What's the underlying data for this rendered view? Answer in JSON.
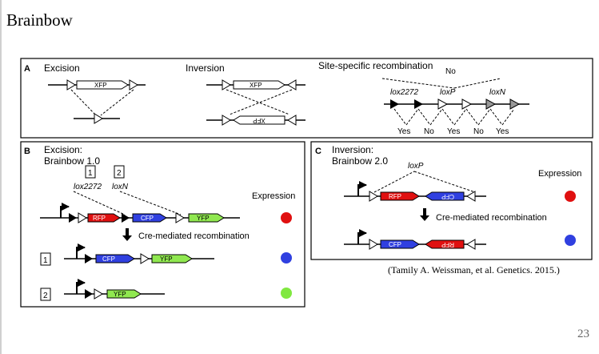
{
  "slide": {
    "title": "Brainbow",
    "citation": "(Tamily A. Weissman, et al. Genetics. 2015.)",
    "page_number": "23"
  },
  "panelA": {
    "letter": "A",
    "excision_label": "Excision",
    "inversion_label": "Inversion",
    "ssr_label": "Site-specific recombination",
    "no_label": "No",
    "xfp": "XFP",
    "site1": "lox2272",
    "site2": "loxP",
    "site3": "loxN",
    "outcomes": [
      "Yes",
      "No",
      "Yes",
      "No",
      "Yes"
    ]
  },
  "panelB": {
    "letter": "B",
    "title_line1": "Excision:",
    "title_line2": "Brainbow 1.0",
    "box1": "1",
    "box2": "2",
    "site1": "lox2272",
    "site2": "loxN",
    "expression": "Expression",
    "rfp": "RFP",
    "cfp": "CFP",
    "yfp": "YFP",
    "cre": "Cre-mediated recombination",
    "row1": "1",
    "row2": "2",
    "colors": {
      "red": "#e01010",
      "blue": "#3040e0",
      "green": "#80e840"
    }
  },
  "panelC": {
    "letter": "C",
    "title_line1": "Inversion:",
    "title_line2": "Brainbow 2.0",
    "site": "loxP",
    "expression": "Expression",
    "rfp": "RFP",
    "cfp": "CFP",
    "cre": "Cre-mediated recombination",
    "colors": {
      "red": "#e01010",
      "blue": "#3040e0"
    }
  }
}
